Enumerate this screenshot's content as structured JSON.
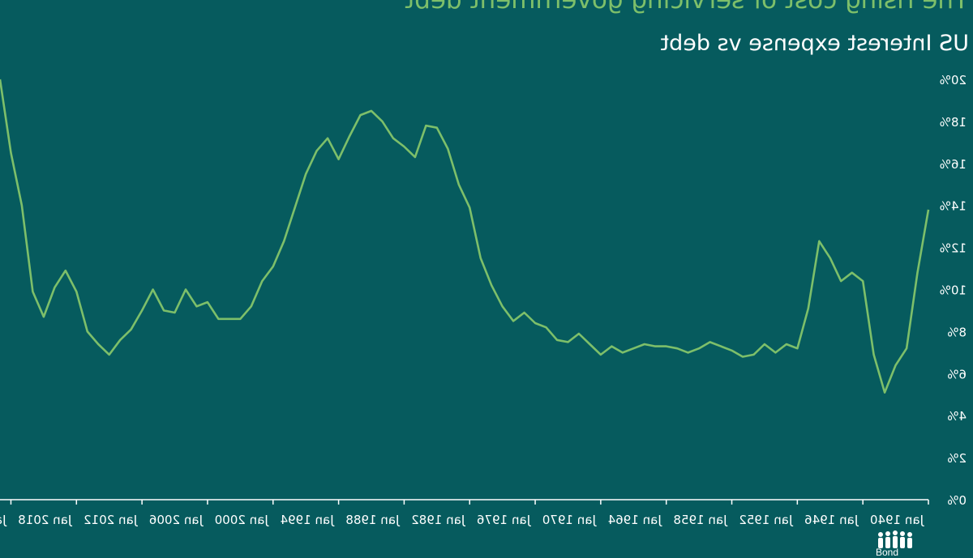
{
  "chart_data": {
    "type": "line",
    "title": "The rising cost of servicing government debt",
    "subtitle": "US Interest expense vs debt",
    "ylim": [
      0,
      20
    ],
    "y_ticks": [
      "0%",
      "2%",
      "4%",
      "6%",
      "8%",
      "10%",
      "12%",
      "14%",
      "16%",
      "18%",
      "20%"
    ],
    "x_ticks": [
      "Jan 1940",
      "Jan 1946",
      "Jan 1952",
      "Jan 1958",
      "Jan 1964",
      "Jan 1970",
      "Jan 1976",
      "Jan 1982",
      "Jan 1988",
      "Jan 1994",
      "Jan 2000",
      "Jan 2006",
      "Jan 2012",
      "Jan 2018",
      "Jan"
    ],
    "xlim": [
      1940,
      2025
    ],
    "grid": false,
    "line_color": "#7dbf6a",
    "series": [
      {
        "x": [
          1940,
          1941,
          1942,
          1943,
          1944,
          1945,
          1946,
          1947,
          1948,
          1949,
          1950,
          1951,
          1952,
          1953,
          1954,
          1955,
          1956,
          1957,
          1958,
          1959,
          1960,
          1961,
          1962,
          1963,
          1964,
          1965,
          1966,
          1967,
          1968,
          1969,
          1970,
          1971,
          1972,
          1973,
          1974,
          1975,
          1976,
          1977,
          1978,
          1979,
          1980,
          1981,
          1982,
          1983,
          1984,
          1985,
          1986,
          1987,
          1988,
          1989,
          1990,
          1991,
          1992,
          1993,
          1994,
          1995,
          1996,
          1997,
          1998,
          1999,
          2000,
          2001,
          2002,
          2003,
          2004,
          2005,
          2006,
          2007,
          2008,
          2009,
          2010,
          2011,
          2012,
          2013,
          2014,
          2015,
          2016,
          2017,
          2018,
          2019,
          2020,
          2021,
          2022,
          2023,
          2024,
          2025
        ],
        "values": [
          13.8,
          10.8,
          7.2,
          6.4,
          5.1,
          6.9,
          10.4,
          10.8,
          10.4,
          11.5,
          12.3,
          9.1,
          7.2,
          7.4,
          7.0,
          7.4,
          6.9,
          6.8,
          7.1,
          7.3,
          7.5,
          7.2,
          7.0,
          7.2,
          7.3,
          7.3,
          7.4,
          7.2,
          7.0,
          7.3,
          6.9,
          7.4,
          7.9,
          7.5,
          7.6,
          8.2,
          8.4,
          8.9,
          8.5,
          9.2,
          10.2,
          11.5,
          13.9,
          15.0,
          16.7,
          17.7,
          17.8,
          16.3,
          16.8,
          17.2,
          18.0,
          18.5,
          18.3,
          17.3,
          16.2,
          17.2,
          16.6,
          15.5,
          13.9,
          12.3,
          11.1,
          10.4,
          9.2,
          8.6,
          8.6,
          8.6,
          9.4,
          9.2,
          10.0,
          8.9,
          9.0,
          10.0,
          9.0,
          8.1,
          7.6,
          6.9,
          7.4,
          8.0,
          9.9,
          10.9,
          10.1,
          8.7,
          9.9,
          14.0,
          16.5,
          20.0
        ]
      }
    ]
  },
  "logo": {
    "text": "Bond"
  }
}
